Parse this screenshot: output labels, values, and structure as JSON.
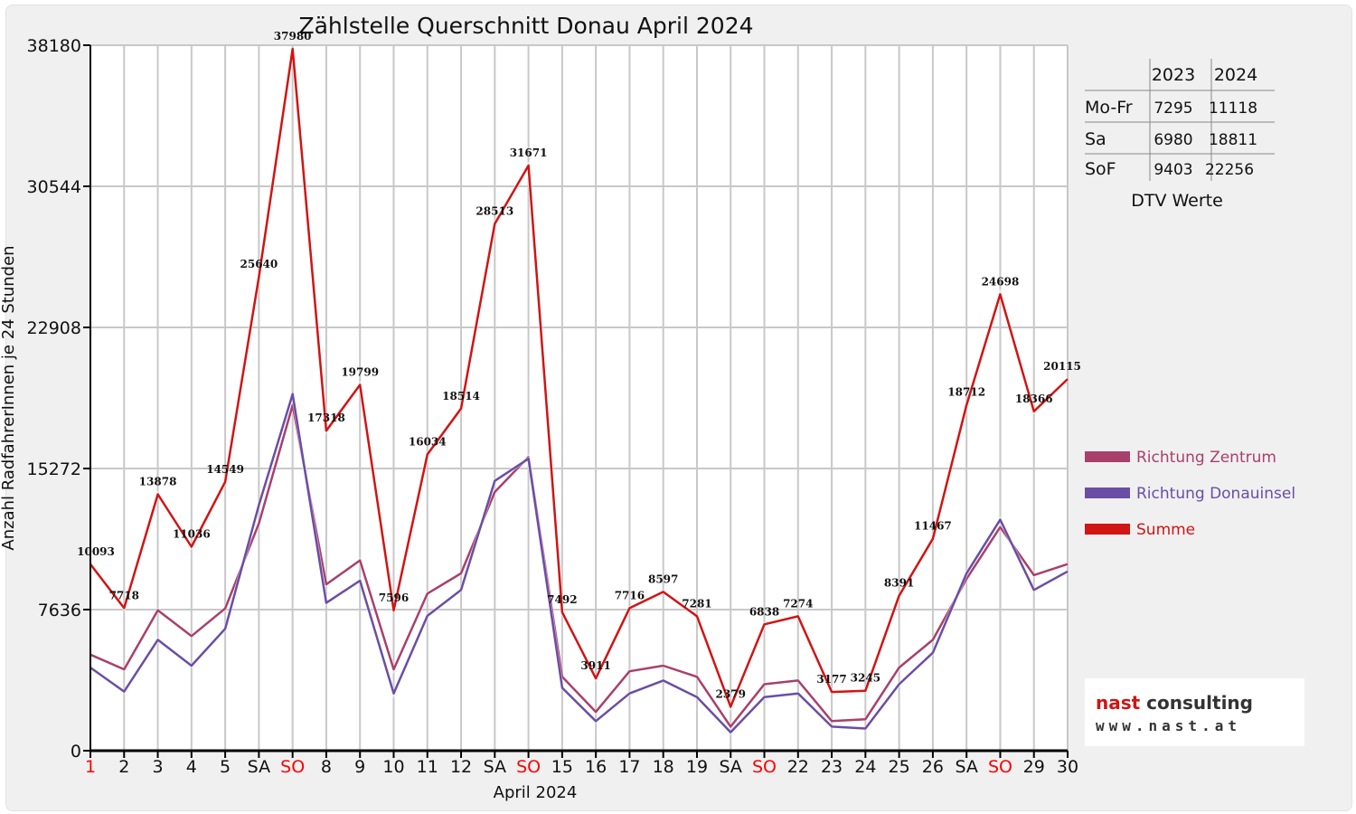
{
  "chart_data": {
    "type": "line",
    "title": "Zählstelle Querschnitt Donau April 2024",
    "xlabel": "April 2024",
    "ylabel": "Anzahl RadfahrerInnen je 24 Stunden",
    "ylim": [
      0,
      38180
    ],
    "yticks": [
      "0",
      "7636",
      "15272",
      "22908",
      "30544",
      "38180"
    ],
    "grid": true,
    "legend_position": "right",
    "categories": [
      "1",
      "2",
      "3",
      "4",
      "5",
      "SA",
      "SO",
      "8",
      "9",
      "10",
      "11",
      "12",
      "SA",
      "SO",
      "15",
      "16",
      "17",
      "18",
      "19",
      "SA",
      "SO",
      "22",
      "23",
      "24",
      "25",
      "26",
      "SA",
      "SO",
      "29",
      "30"
    ],
    "highlight_categories": [
      0,
      6,
      13,
      20,
      27
    ],
    "highlight_color": "#ff0000",
    "series": [
      {
        "name": "Richtung Zentrum",
        "color": "#a8406c",
        "values": [
          5200,
          4400,
          7600,
          6200,
          7700,
          12300,
          18700,
          9000,
          10300,
          4400,
          8500,
          9600,
          14000,
          15900,
          4000,
          2100,
          4300,
          4600,
          4000,
          1300,
          3600,
          3800,
          1600,
          1700,
          4500,
          6000,
          9300,
          12100,
          9500,
          10100
        ]
      },
      {
        "name": "Richtung Donauinsel",
        "color": "#6a4ea5",
        "values": [
          4500,
          3200,
          6000,
          4600,
          6600,
          13300,
          19300,
          8000,
          9200,
          3100,
          7300,
          8700,
          14600,
          15800,
          3400,
          1600,
          3100,
          3800,
          2900,
          1000,
          2900,
          3100,
          1300,
          1200,
          3600,
          5300,
          9600,
          12500,
          8700,
          9700
        ]
      },
      {
        "name": "Summe",
        "color": "#d11414",
        "values": [
          10093,
          7718,
          13878,
          11036,
          14549,
          25640,
          37980,
          17318,
          19799,
          7596,
          16034,
          18514,
          28513,
          31671,
          7492,
          3911,
          7716,
          8597,
          7281,
          2379,
          6838,
          7274,
          3177,
          3245,
          8391,
          11467,
          18712,
          24698,
          18366,
          20115
        ],
        "labels": [
          "10093",
          "7718",
          "13878",
          "11036",
          "14549",
          "25640",
          "37980",
          "17318",
          "19799",
          "7596",
          "16034",
          "18514",
          "28513",
          "31671",
          "7492",
          "3911",
          "7716",
          "8597",
          "7281",
          "2379",
          "6838",
          "7274",
          "3177",
          "3245",
          "8391",
          "11467",
          "18712",
          "24698",
          "18366",
          "20115"
        ]
      }
    ]
  },
  "dtv_table": {
    "headers": [
      "",
      "2023",
      "2024"
    ],
    "rows": [
      {
        "label": "Mo-Fr",
        "v2023": "7295",
        "v2024": "11118"
      },
      {
        "label": "Sa",
        "v2023": "6980",
        "v2024": "18811"
      },
      {
        "label": "SoF",
        "v2023": "9403",
        "v2024": "22256"
      }
    ],
    "caption": "DTV Werte"
  },
  "logo": {
    "line1": "nast consulting",
    "line2": "www.nast.at"
  }
}
